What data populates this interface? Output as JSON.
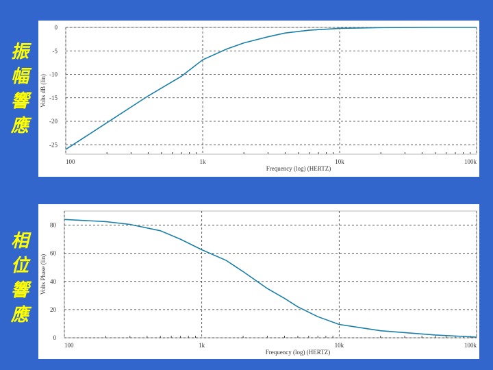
{
  "side_labels": {
    "magnitude": [
      "振",
      "幅",
      "響",
      "應"
    ],
    "phase": [
      "相",
      "位",
      "響",
      "應"
    ]
  },
  "colors": {
    "background": "#3366cc",
    "label": "#ffff00",
    "curve": "#1a7fa8",
    "grid": "#333333"
  },
  "chart_data": [
    {
      "type": "line",
      "title": "",
      "xlabel": "Frequency (log) (HERTZ)",
      "ylabel": "Volts dB (lin)",
      "xscale": "log",
      "xlim": [
        100,
        100000
      ],
      "ylim": [
        -27,
        0
      ],
      "x_ticks": [
        100,
        1000,
        10000,
        100000
      ],
      "x_tick_labels": [
        "100",
        "1k",
        "10k",
        "100k"
      ],
      "y_ticks": [
        0,
        -5,
        -10,
        -15,
        -20,
        -25
      ],
      "y_tick_labels": [
        "0",
        "-5",
        "-10",
        "-15",
        "-20",
        "-25"
      ],
      "grid": true,
      "series": [
        {
          "x": [
            100,
            200,
            400,
            700,
            1000,
            1500,
            2000,
            3000,
            4000,
            6000,
            10000,
            20000,
            50000,
            100000
          ],
          "y": [
            -26.0,
            -20.3,
            -14.6,
            -10.4,
            -6.9,
            -4.6,
            -3.3,
            -2.0,
            -1.2,
            -0.6,
            -0.2,
            -0.05,
            0.0,
            0.0
          ]
        }
      ]
    },
    {
      "type": "line",
      "title": "",
      "xlabel": "Frequency (log) (HERTZ)",
      "ylabel": "Volts Phase (lin)",
      "xscale": "log",
      "xlim": [
        100,
        100000
      ],
      "ylim": [
        0,
        90
      ],
      "x_ticks": [
        100,
        1000,
        10000,
        100000
      ],
      "x_tick_labels": [
        "100",
        "1k",
        "10k",
        "100k"
      ],
      "y_ticks": [
        0,
        20,
        40,
        60,
        80
      ],
      "y_tick_labels": [
        "0",
        "20",
        "40",
        "60",
        "80"
      ],
      "grid": true,
      "series": [
        {
          "x": [
            100,
            200,
            300,
            500,
            700,
            1000,
            1500,
            2000,
            3000,
            4000,
            5000,
            7000,
            10000,
            20000,
            50000,
            100000
          ],
          "y": [
            84.0,
            82.5,
            80.5,
            76.0,
            70.0,
            62.5,
            55.0,
            47.0,
            35.0,
            28.0,
            22.0,
            15.0,
            9.5,
            5.0,
            2.0,
            0.5
          ]
        }
      ]
    }
  ]
}
